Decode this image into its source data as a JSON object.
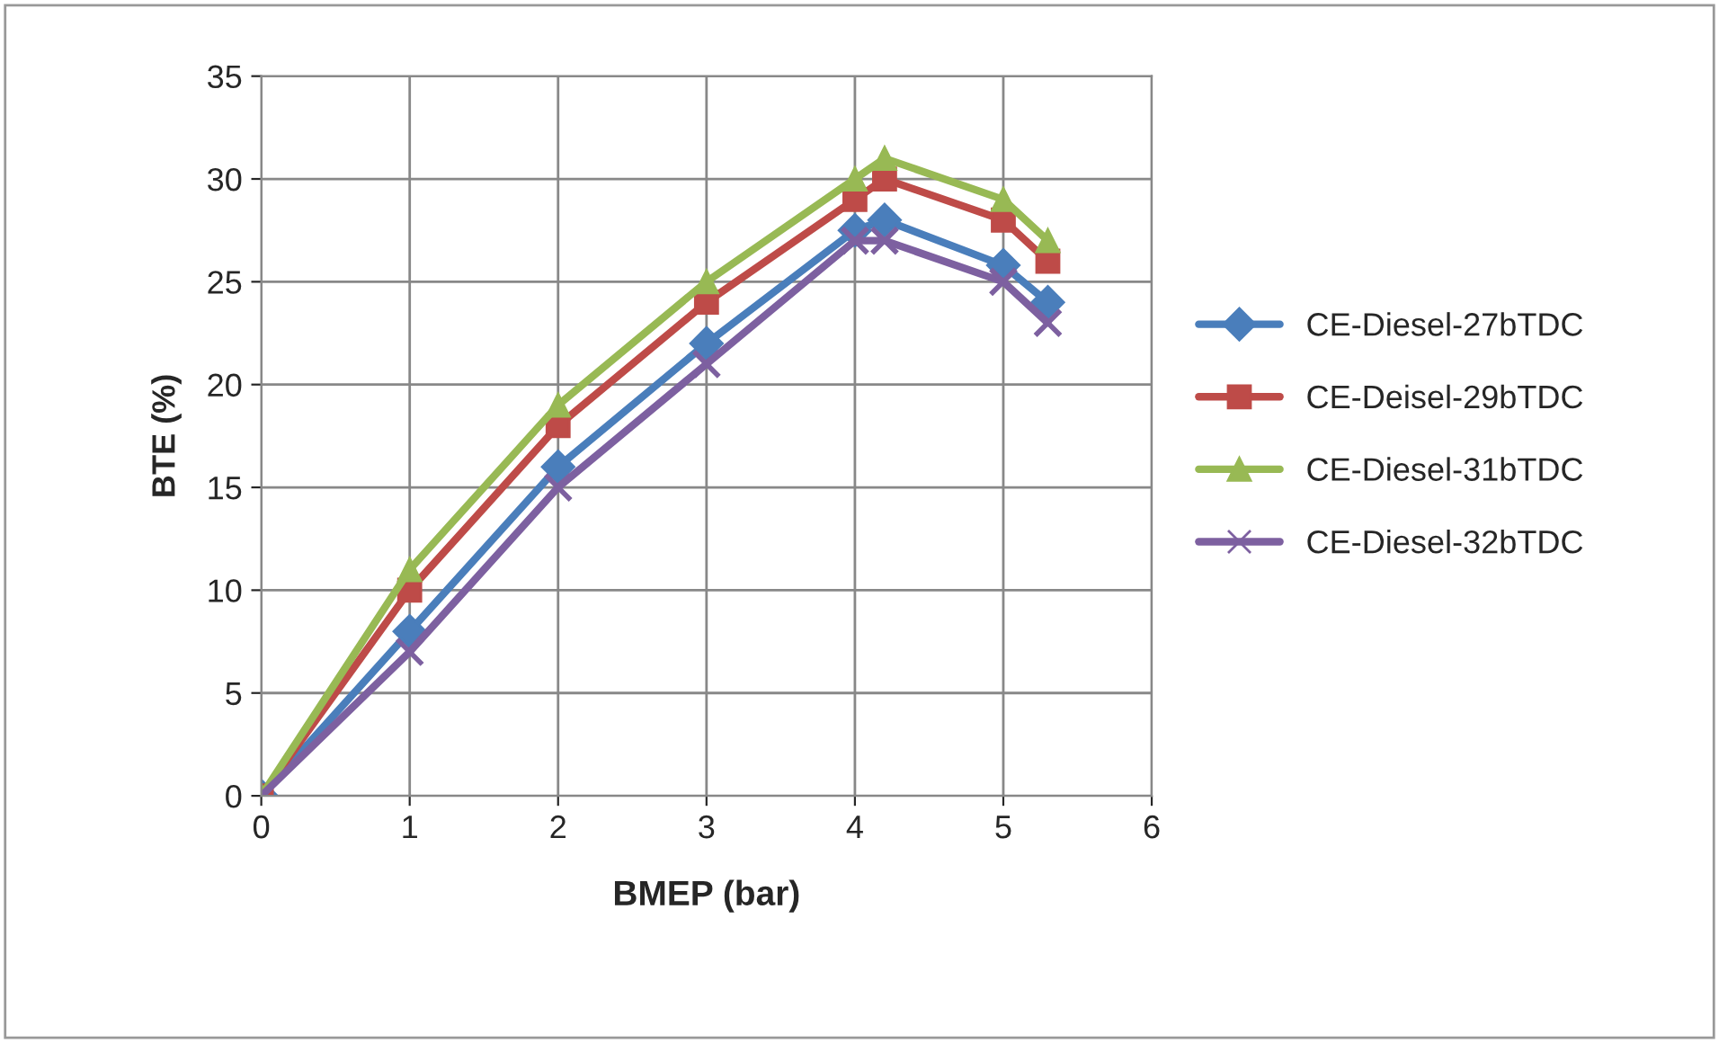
{
  "chart_data": {
    "type": "line",
    "xlabel": "BMEP (bar)",
    "ylabel": "BTE (%)",
    "xlim": [
      0,
      6
    ],
    "xticks": [
      0,
      1,
      2,
      3,
      4,
      5,
      6
    ],
    "ylim": [
      0,
      35
    ],
    "yticks": [
      0,
      5,
      10,
      15,
      20,
      25,
      30,
      35
    ],
    "grid": true,
    "legend": "right",
    "line_style": "solid",
    "x": [
      0,
      1,
      2,
      3,
      4,
      4.2,
      5,
      5.3
    ],
    "series": [
      {
        "name": "CE-Diesel-27bTDC",
        "color": "#4a7ebb",
        "marker": "diamond",
        "values": [
          0,
          8,
          16,
          22,
          27.5,
          28,
          25.8,
          24
        ]
      },
      {
        "name": "CE-Deisel-29bTDC",
        "color": "#be4b48",
        "marker": "square",
        "values": [
          0,
          10,
          18,
          24,
          29,
          30,
          28,
          26
        ]
      },
      {
        "name": "CE-Diesel-31bTDC",
        "color": "#98b954",
        "marker": "triangle",
        "values": [
          0,
          11,
          19,
          25,
          30,
          31,
          29,
          27
        ]
      },
      {
        "name": "CE-Diesel-32bTDC",
        "color": "#7d60a0",
        "marker": "cross",
        "values": [
          0,
          7,
          15,
          21,
          27,
          27,
          25,
          23
        ]
      }
    ]
  }
}
